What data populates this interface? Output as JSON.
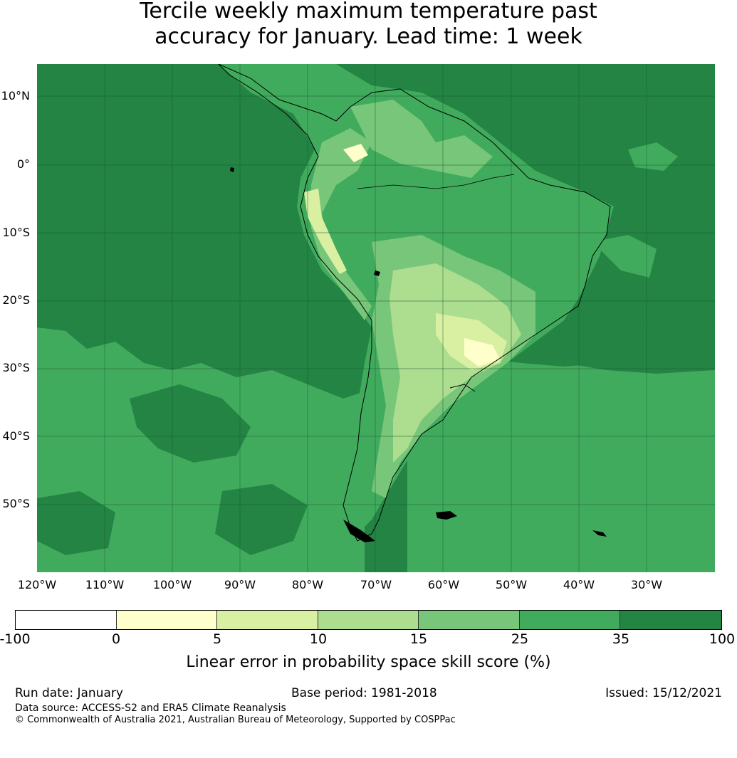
{
  "title": {
    "line1": "Tercile weekly maximum temperature past",
    "line2": "accuracy for January. Lead time: 1 week"
  },
  "map": {
    "region": "South America",
    "lat_labels": [
      "10°N",
      "0°",
      "10°S",
      "20°S",
      "30°S",
      "40°S",
      "50°S"
    ],
    "lon_labels": [
      "120°W",
      "110°W",
      "100°W",
      "90°W",
      "80°W",
      "70°W",
      "60°W",
      "50°W",
      "40°W",
      "30°W"
    ]
  },
  "colorbar": {
    "ticks": [
      "-100",
      "0",
      "5",
      "10",
      "15",
      "25",
      "35",
      "100"
    ],
    "segments": [
      {
        "range": "-100 to 0",
        "color": "#ffffff"
      },
      {
        "range": "0 to 5",
        "color": "#ffffcc"
      },
      {
        "range": "5 to 10",
        "color": "#d9f0a3"
      },
      {
        "range": "10 to 15",
        "color": "#addd8e"
      },
      {
        "range": "15 to 25",
        "color": "#78c679"
      },
      {
        "range": "25 to 35",
        "color": "#41ab5d"
      },
      {
        "range": "35 to 100",
        "color": "#238443"
      }
    ],
    "label": "Linear error in probability space skill score (%)"
  },
  "footer": {
    "run_date": "Run date: January",
    "base_period": "Base period: 1981-2018",
    "issued": "Issued: 15/12/2021",
    "source": "Data source: ACCESS-S2 and ERA5 Climate Reanalysis",
    "copyright": "© Commonwealth of Australia 2021, Australian Bureau of Meteorology, Supported by COSPPac"
  }
}
